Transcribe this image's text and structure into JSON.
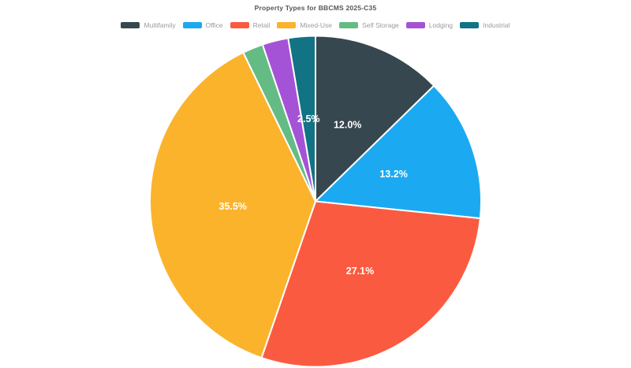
{
  "chart_data": {
    "type": "pie",
    "title": "Property Types for BBCMS 2025-C35",
    "title_color": "#555555",
    "legend_position": "top",
    "legend_text_color": "#9B9B9B",
    "background_color": "#FFFFFF",
    "direction": "clockwise",
    "start_angle_deg": 0,
    "slice_label_color": "#FFFFFF",
    "slice_label_radius_fraction": 0.5,
    "categories": [
      "Multifamily",
      "Office",
      "Retail",
      "Mixed-Use",
      "Self Storage",
      "Lodging",
      "Industrial"
    ],
    "slices": [
      {
        "name": "Multifamily",
        "value": 12.0,
        "display_label": "12.0%",
        "color": "#37474F"
      },
      {
        "name": "Office",
        "value": 13.2,
        "display_label": "13.2%",
        "color": "#1BA9F2"
      },
      {
        "name": "Retail",
        "value": 27.1,
        "display_label": "27.1%",
        "color": "#FA5B40"
      },
      {
        "name": "Mixed-Use",
        "value": 35.5,
        "display_label": "35.5%",
        "color": "#FBB32B"
      },
      {
        "name": "Self Storage",
        "value": 1.9,
        "display_label": "",
        "color": "#64BC84"
      },
      {
        "name": "Lodging",
        "value": 2.4,
        "display_label": "",
        "color": "#A553D6"
      },
      {
        "name": "Industrial",
        "value": 2.5,
        "display_label": "2.5%",
        "color": "#117384"
      }
    ]
  }
}
